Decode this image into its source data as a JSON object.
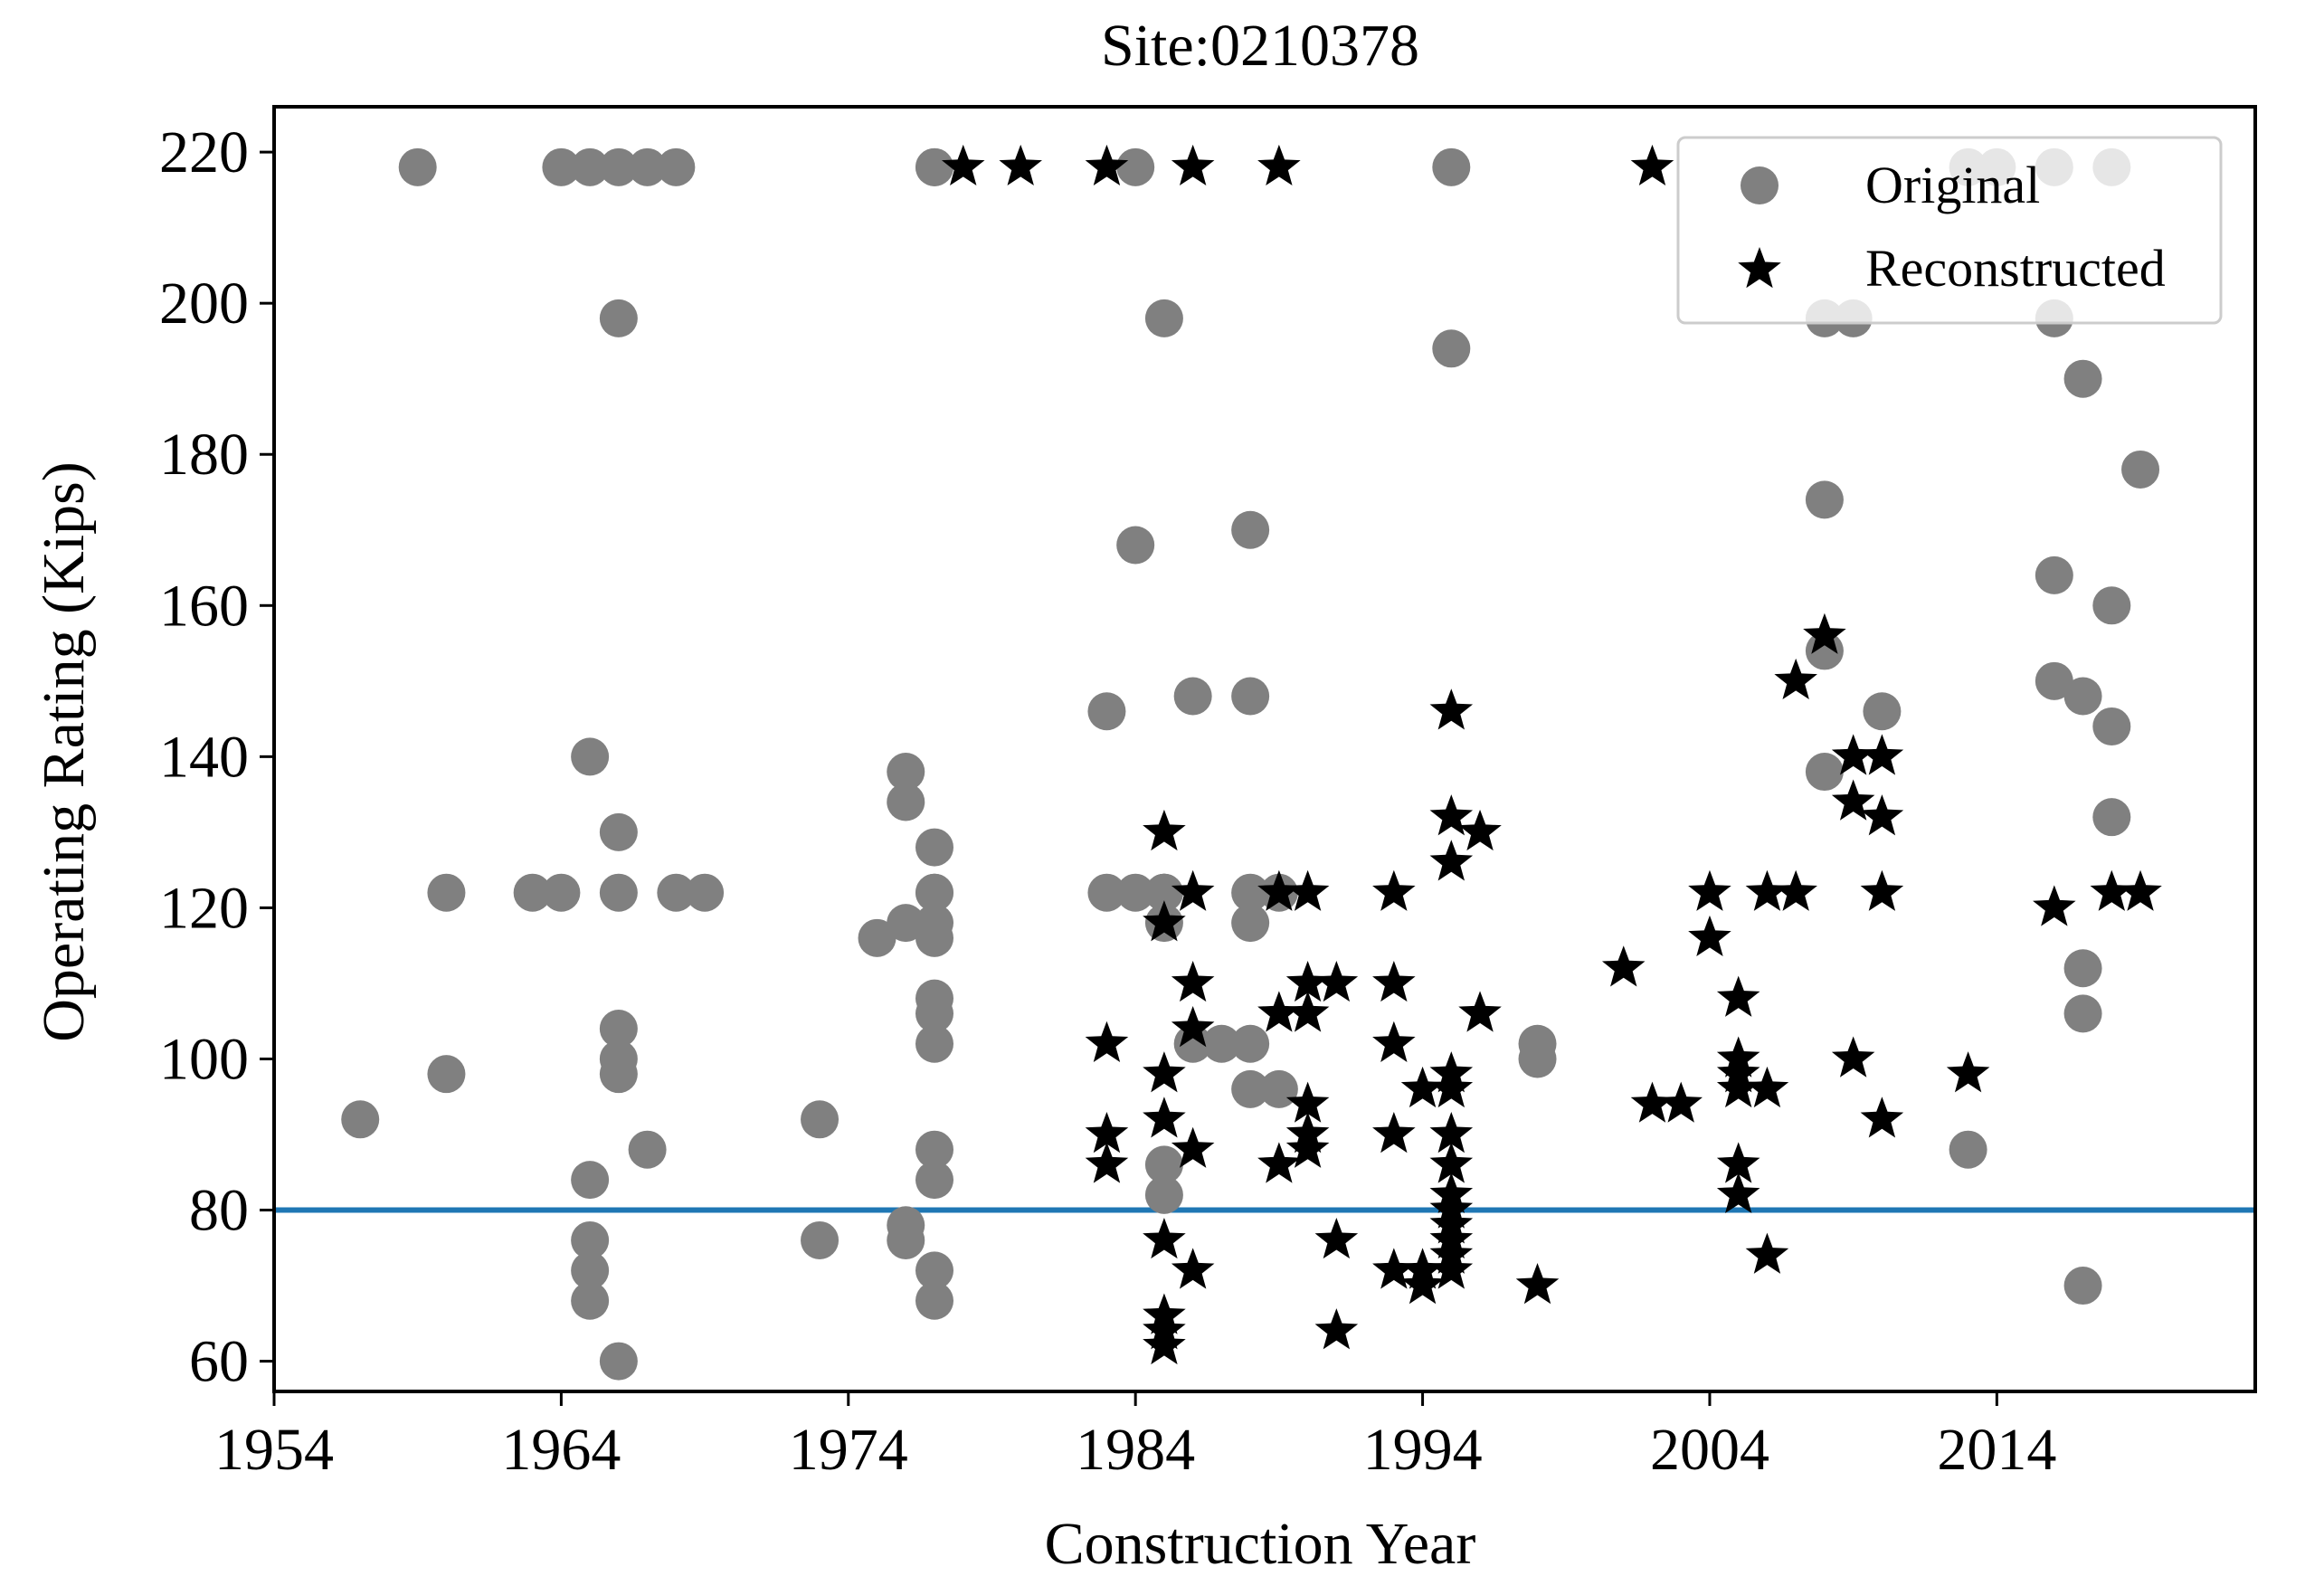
{
  "chart_data": {
    "type": "scatter",
    "title": "Site:0210378",
    "xlabel": "Construction Year",
    "ylabel": "Operating Rating (Kips)",
    "xlim": [
      1954,
      2023
    ],
    "ylim": [
      56,
      226
    ],
    "x_ticks": [
      1954,
      1964,
      1974,
      1984,
      1994,
      2004,
      2014
    ],
    "x_tick_labels": [
      "1954",
      "1964",
      "1974",
      "1984",
      "1994",
      "2004",
      "2014"
    ],
    "y_ticks": [
      60,
      80,
      100,
      120,
      140,
      160,
      180,
      200,
      220
    ],
    "y_tick_labels": [
      "60",
      "80",
      "100",
      "120",
      "140",
      "160",
      "180",
      "200",
      "220"
    ],
    "legend_position": "top-right",
    "reference_line": {
      "y": 80,
      "color": "#1f77b4"
    },
    "series": [
      {
        "name": "Original",
        "marker": "circle",
        "color": "#808080",
        "x": [
          1957,
          1959,
          1960,
          1960,
          1963,
          1964,
          1964,
          1965,
          1965,
          1965,
          1965,
          1965,
          1965,
          1966,
          1966,
          1966,
          1966,
          1966,
          1966,
          1966,
          1966,
          1967,
          1967,
          1968,
          1968,
          1969,
          1973,
          1973,
          1975,
          1976,
          1976,
          1976,
          1976,
          1976,
          1977,
          1977,
          1977,
          1977,
          1977,
          1977,
          1977,
          1977,
          1977,
          1977,
          1977,
          1977,
          1977,
          1977,
          1983,
          1983,
          1984,
          1984,
          1984,
          1985,
          1985,
          1985,
          1985,
          1985,
          1985,
          1985,
          1986,
          1986,
          1987,
          1988,
          1988,
          1988,
          1988,
          1988,
          1988,
          1989,
          1989,
          1995,
          1995,
          1998,
          1998,
          2008,
          2008,
          2008,
          2008,
          2009,
          2010,
          2013,
          2013,
          2014,
          2016,
          2016,
          2016,
          2016,
          2017,
          2017,
          2017,
          2017,
          2017,
          2018,
          2018,
          2018,
          2018,
          2019
        ],
        "y": [
          92,
          218,
          122,
          98,
          122,
          218,
          122,
          218,
          140,
          84,
          76,
          72,
          68,
          60,
          218,
          198,
          130,
          122,
          104,
          100,
          98,
          88,
          218,
          122,
          218,
          122,
          92,
          76,
          116,
          138,
          134,
          118,
          78,
          76,
          218,
          218,
          128,
          122,
          118,
          116,
          108,
          106,
          102,
          88,
          84,
          72,
          68,
          122,
          146,
          122,
          168,
          122,
          218,
          198,
          122,
          118,
          86,
          82,
          122,
          122,
          148,
          102,
          102,
          170,
          148,
          122,
          118,
          102,
          96,
          96,
          122,
          218,
          194,
          102,
          100,
          174,
          154,
          138,
          198,
          198,
          146,
          218,
          88,
          218,
          198,
          164,
          150,
          218,
          190,
          148,
          112,
          106,
          70,
          218,
          160,
          144,
          132,
          178
        ]
      },
      {
        "name": "Reconstructed",
        "marker": "star",
        "color": "#000000",
        "x": [
          1978,
          1980,
          1983,
          1983,
          1983,
          1983,
          1985,
          1985,
          1985,
          1985,
          1985,
          1985,
          1985,
          1985,
          1986,
          1986,
          1986,
          1986,
          1986,
          1986,
          1989,
          1989,
          1989,
          1989,
          1990,
          1990,
          1990,
          1990,
          1990,
          1990,
          1991,
          1991,
          1991,
          1993,
          1993,
          1993,
          1993,
          1993,
          1994,
          1994,
          1994,
          1995,
          1995,
          1995,
          1995,
          1995,
          1995,
          1995,
          1995,
          1995,
          1995,
          1995,
          1995,
          1995,
          1996,
          1996,
          1998,
          2001,
          2002,
          2002,
          2003,
          2004,
          2004,
          2005,
          2005,
          2005,
          2005,
          2005,
          2005,
          2006,
          2006,
          2006,
          2007,
          2007,
          2008,
          2009,
          2009,
          2009,
          2010,
          2010,
          2010,
          2010,
          2013,
          2016,
          2018,
          2019
        ],
        "y": [
          218,
          218,
          218,
          102,
          90,
          86,
          130,
          118,
          98,
          92,
          76,
          66,
          64,
          62,
          218,
          122,
          110,
          104,
          88,
          72,
          218,
          122,
          106,
          86,
          122,
          110,
          106,
          94,
          90,
          88,
          110,
          76,
          64,
          122,
          110,
          102,
          90,
          72,
          96,
          72,
          70,
          146,
          132,
          126,
          98,
          96,
          90,
          86,
          82,
          80,
          78,
          76,
          74,
          72,
          130,
          106,
          70,
          112,
          218,
          94,
          94,
          122,
          116,
          108,
          100,
          98,
          96,
          86,
          82,
          122,
          96,
          74,
          150,
          122,
          156,
          140,
          134,
          100,
          140,
          132,
          122,
          92,
          98,
          120,
          122,
          122
        ]
      }
    ]
  }
}
